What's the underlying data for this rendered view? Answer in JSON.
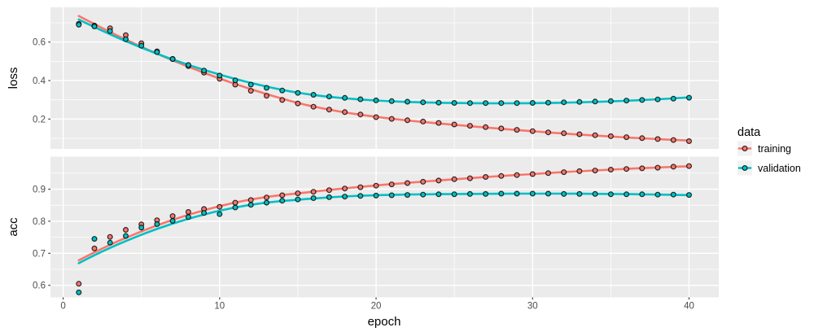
{
  "chart_data": {
    "type": "line",
    "title": "",
    "xlabel": "epoch",
    "x": [
      1,
      2,
      3,
      4,
      5,
      6,
      7,
      8,
      9,
      10,
      11,
      12,
      13,
      14,
      15,
      16,
      17,
      18,
      19,
      20,
      21,
      22,
      23,
      24,
      25,
      26,
      27,
      28,
      29,
      30,
      31,
      32,
      33,
      34,
      35,
      36,
      37,
      38,
      39,
      40
    ],
    "x_ticks": [
      0,
      10,
      20,
      30,
      40
    ],
    "x_minor": [
      5,
      15,
      25,
      35
    ],
    "xlim": [
      -0.81,
      41.9
    ],
    "smoothing": "loess",
    "grid": "on",
    "legend_position": "right",
    "legend": {
      "title": "data",
      "entries": [
        {
          "label": "training",
          "color": "#F8766D"
        },
        {
          "label": "validation",
          "color": "#00BFC4"
        }
      ]
    },
    "facets": [
      {
        "name": "loss",
        "ylabel": "loss",
        "y_ticks": [
          0.2,
          0.4,
          0.6
        ],
        "y_minor": [
          0.1,
          0.3,
          0.5,
          0.7
        ],
        "ylim": [
          0.045,
          0.7805
        ],
        "series": [
          {
            "name": "training",
            "values": [
              0.695,
              0.686,
              0.672,
              0.636,
              0.594,
              0.552,
              0.512,
              0.475,
              0.441,
              0.409,
              0.379,
              0.347,
              0.321,
              0.299,
              0.281,
              0.264,
              0.249,
              0.236,
              0.224,
              0.21,
              0.201,
              0.194,
              0.187,
              0.18,
              0.172,
              0.165,
              0.158,
              0.151,
              0.144,
              0.137,
              0.131,
              0.126,
              0.121,
              0.116,
              0.111,
              0.106,
              0.101,
              0.096,
              0.091,
              0.085
            ]
          },
          {
            "name": "validation",
            "values": [
              0.69,
              0.681,
              0.657,
              0.615,
              0.581,
              0.548,
              0.512,
              0.481,
              0.452,
              0.426,
              0.401,
              0.379,
              0.362,
              0.348,
              0.336,
              0.326,
              0.317,
              0.31,
              0.303,
              0.297,
              0.293,
              0.29,
              0.287,
              0.285,
              0.284,
              0.283,
              0.283,
              0.283,
              0.283,
              0.284,
              0.285,
              0.287,
              0.289,
              0.291,
              0.293,
              0.296,
              0.299,
              0.302,
              0.306,
              0.311
            ]
          }
        ]
      },
      {
        "name": "acc",
        "ylabel": "acc",
        "y_ticks": [
          0.6,
          0.7,
          0.8,
          0.9
        ],
        "y_minor": [
          0.65,
          0.75,
          0.85,
          0.95
        ],
        "ylim": [
          0.5625,
          1.0015
        ],
        "series": [
          {
            "name": "training",
            "values": [
              0.605,
              0.715,
              0.751,
              0.773,
              0.79,
              0.803,
              0.816,
              0.829,
              0.838,
              0.845,
              0.858,
              0.866,
              0.874,
              0.881,
              0.887,
              0.892,
              0.897,
              0.902,
              0.906,
              0.911,
              0.915,
              0.919,
              0.923,
              0.927,
              0.931,
              0.934,
              0.938,
              0.941,
              0.944,
              0.947,
              0.95,
              0.953,
              0.956,
              0.958,
              0.961,
              0.963,
              0.965,
              0.967,
              0.97,
              0.972
            ]
          },
          {
            "name": "validation",
            "values": [
              0.578,
              0.745,
              0.733,
              0.754,
              0.78,
              0.791,
              0.801,
              0.813,
              0.826,
              0.822,
              0.843,
              0.851,
              0.858,
              0.864,
              0.868,
              0.872,
              0.875,
              0.877,
              0.879,
              0.88,
              0.881,
              0.882,
              0.883,
              0.884,
              0.884,
              0.885,
              0.885,
              0.886,
              0.886,
              0.886,
              0.886,
              0.885,
              0.885,
              0.885,
              0.884,
              0.884,
              0.884,
              0.883,
              0.883,
              0.882
            ]
          }
        ]
      }
    ],
    "style": {
      "panel_bg": "#EBEBEB",
      "grid_color": "#FFFFFF",
      "tick_text_color": "#4D4D4D",
      "tick_mark_color": "#333333",
      "point_stroke": "#000000",
      "legend_key_bg": "#F2F2F2"
    }
  }
}
